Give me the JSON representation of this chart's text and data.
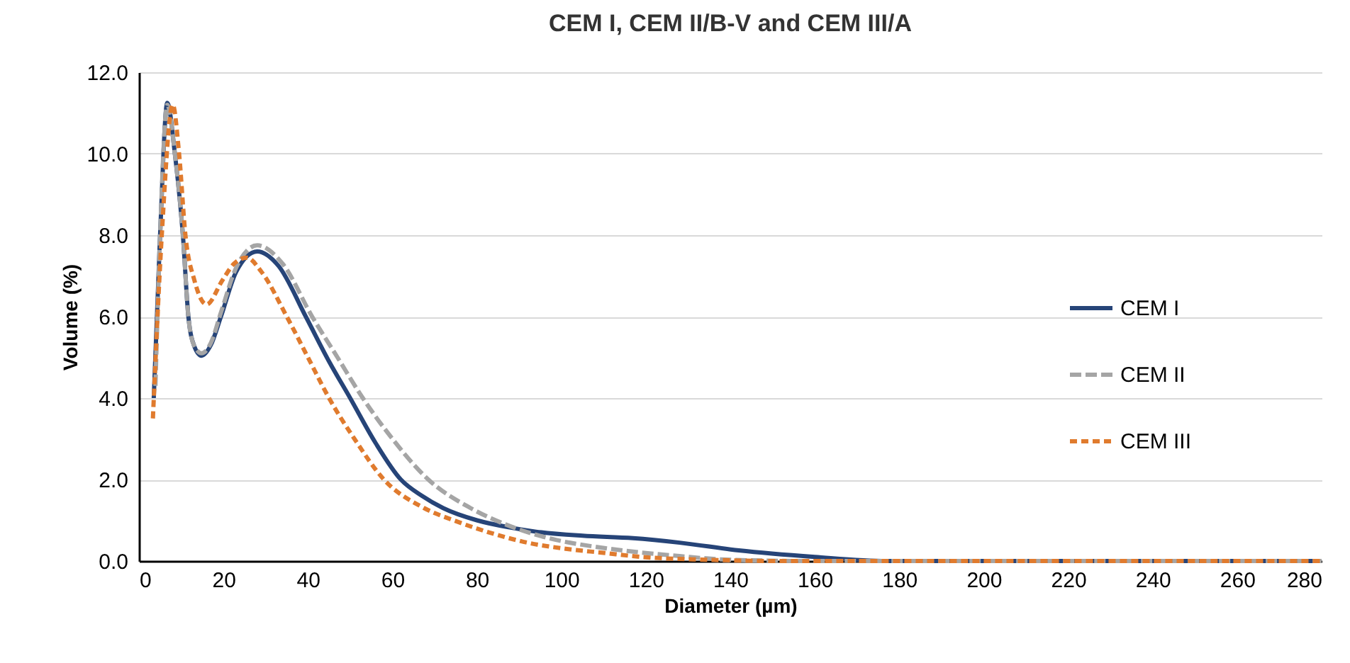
{
  "chart_data": {
    "type": "line",
    "title": "CEM I, CEM II/B-V and CEM III/A",
    "xlabel": "Diameter (µm)",
    "ylabel": "Volume (%)",
    "xlim": [
      0,
      280
    ],
    "xticks": [
      0,
      20,
      40,
      60,
      80,
      100,
      120,
      140,
      160,
      180,
      200,
      220,
      240,
      260,
      280
    ],
    "ylim": [
      0,
      12
    ],
    "yticks": [
      {
        "value": 0,
        "label": "0.0"
      },
      {
        "value": 2,
        "label": "2.0"
      },
      {
        "value": 4,
        "label": "4.0"
      },
      {
        "value": 6,
        "label": "6.0"
      },
      {
        "value": 8,
        "label": "8.0"
      },
      {
        "value": 10,
        "label": "10.0"
      },
      {
        "value": 12,
        "label": "12.0"
      }
    ],
    "grid": "y",
    "legend": "right",
    "marker": "none",
    "series": [
      {
        "name": "CEM I",
        "color": "#264478",
        "line_style": "solid",
        "x": [
          3.5,
          5,
          6.7,
          8.5,
          10.4,
          11.7,
          13,
          14.8,
          17,
          19.4,
          23,
          28,
          33,
          39.5,
          45,
          50,
          56,
          62,
          67,
          72,
          80,
          88,
          94,
          105,
          117,
          128,
          142,
          160,
          177,
          200,
          240,
          280
        ],
        "values": [
          4.0,
          8.0,
          11.25,
          10.0,
          8.0,
          6.0,
          5.3,
          5.04,
          5.3,
          6.0,
          7.1,
          7.6,
          7.25,
          6.0,
          4.9,
          4.0,
          2.9,
          2.0,
          1.6,
          1.3,
          1.0,
          0.82,
          0.72,
          0.62,
          0.56,
          0.45,
          0.26,
          0.1,
          0.0,
          0.0,
          0.0,
          0.0
        ]
      },
      {
        "name": "CEM II",
        "color": "#a5a5a5",
        "line_style": "dashed",
        "x": [
          3.9,
          5,
          6.7,
          8.5,
          10.4,
          11.7,
          13,
          14.8,
          17,
          19.4,
          23,
          28,
          34,
          41,
          47,
          53,
          60,
          68.5,
          78.5,
          88,
          98.7,
          108,
          117,
          128,
          140,
          160,
          200,
          240,
          280
        ],
        "values": [
          4.3,
          8.0,
          11.2,
          10.0,
          8.0,
          6.0,
          5.3,
          5.1,
          5.35,
          6.1,
          7.2,
          7.75,
          7.3,
          6.0,
          5.0,
          4.0,
          3.0,
          2.0,
          1.3,
          0.85,
          0.52,
          0.35,
          0.23,
          0.12,
          0.03,
          0.0,
          0.0,
          0.0,
          0.0
        ]
      },
      {
        "name": "CEM III",
        "color": "#e07b2e",
        "line_style": "dotted",
        "x": [
          3.3,
          5.4,
          8,
          9.5,
          11,
          13.1,
          16,
          19.8,
          22.5,
          25.5,
          29,
          35,
          40,
          45,
          51,
          58,
          67.5,
          75,
          82,
          92,
          101,
          110,
          119,
          135,
          150,
          180,
          220,
          280
        ],
        "values": [
          3.5,
          8.0,
          11.2,
          10.0,
          8.0,
          6.9,
          6.3,
          6.9,
          7.3,
          7.45,
          7.1,
          6.0,
          5.0,
          4.0,
          3.0,
          2.0,
          1.3,
          0.98,
          0.73,
          0.45,
          0.3,
          0.2,
          0.1,
          0.03,
          0.0,
          0.0,
          0.0,
          0.0
        ]
      }
    ]
  }
}
